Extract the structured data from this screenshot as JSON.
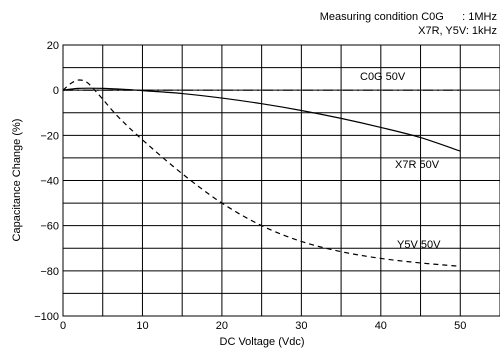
{
  "chart_data": {
    "type": "line",
    "title": "",
    "note": {
      "line1": "Measuring condition C0G      : 1MHz",
      "line2": "X7R, Y5V: 1kHz"
    },
    "xlabel": "DC Voltage (Vdc)",
    "ylabel": "Capacitance Change (%)",
    "xlim": [
      0,
      50
    ],
    "ylim": [
      -100,
      20
    ],
    "x_ticks": [
      0,
      10,
      20,
      30,
      40,
      50
    ],
    "y_ticks": [
      20,
      0,
      -20,
      -40,
      -60,
      -80,
      -100
    ],
    "x_tick_labels": [
      "0",
      "10",
      "20",
      "30",
      "40",
      "50"
    ],
    "y_tick_labels": [
      "20",
      "0",
      "−20",
      "−40",
      "−60",
      "−80",
      "−100"
    ],
    "grid": true,
    "series": [
      {
        "name": "C0G 50V",
        "style": "dash-dot",
        "color": "#000000",
        "x": [
          0,
          10,
          20,
          30,
          40,
          50
        ],
        "y": [
          0,
          0,
          0,
          0,
          0,
          0
        ]
      },
      {
        "name": "X7R 50V",
        "style": "solid",
        "color": "#000000",
        "x": [
          0,
          2,
          5,
          8,
          10,
          15,
          20,
          25,
          30,
          35,
          40,
          45,
          50
        ],
        "y": [
          0,
          0.8,
          0.8,
          0.3,
          -0.2,
          -1.5,
          -3.5,
          -6,
          -9,
          -12.5,
          -16.5,
          -21,
          -27
        ]
      },
      {
        "name": "Y5V 50V",
        "style": "dashed",
        "color": "#000000",
        "x": [
          0,
          1,
          2,
          3,
          4,
          5,
          7,
          10,
          15,
          20,
          25,
          30,
          35,
          40,
          45,
          50
        ],
        "y": [
          0,
          3,
          4.5,
          3.5,
          0,
          -4,
          -12,
          -22,
          -37,
          -50,
          -60,
          -67,
          -71.5,
          -74.5,
          -76.5,
          -78
        ]
      }
    ]
  }
}
